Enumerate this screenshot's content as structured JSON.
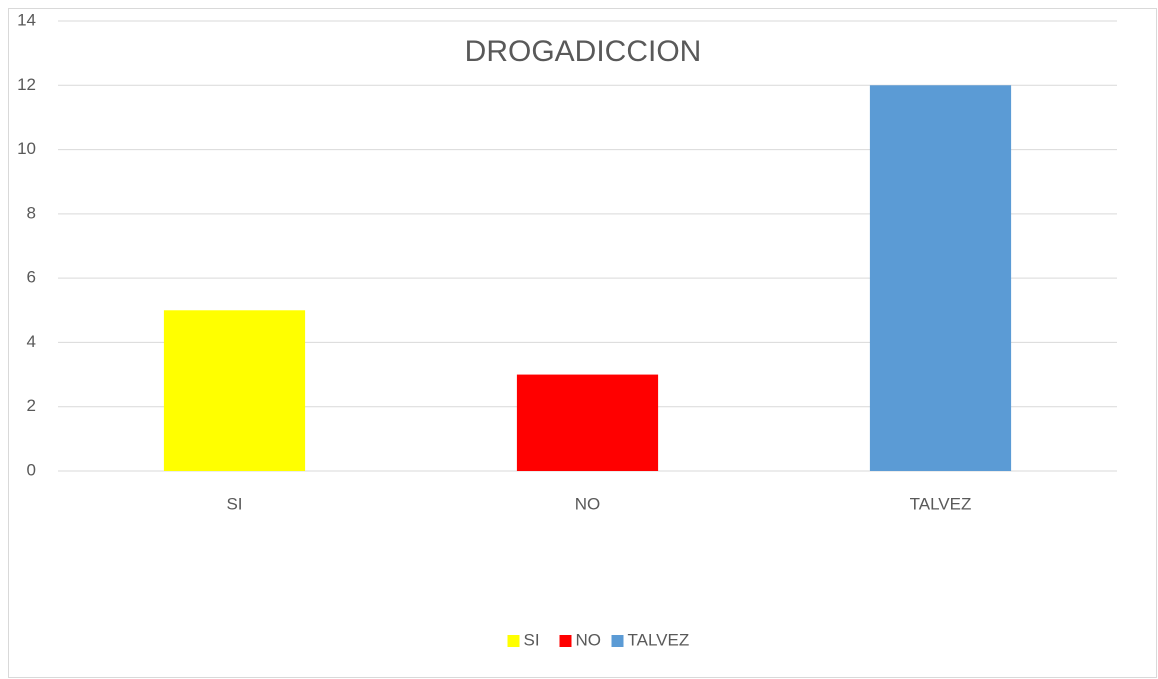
{
  "chart_data": {
    "type": "bar",
    "title": "DROGADICCION",
    "categories": [
      "SI",
      "NO",
      "TALVEZ"
    ],
    "values": [
      5,
      3,
      12
    ],
    "colors": [
      "#ffff00",
      "#ff0000",
      "#5b9bd5"
    ],
    "ylim": [
      0,
      14
    ],
    "yticks": [
      0,
      2,
      4,
      6,
      8,
      10,
      12,
      14
    ],
    "grid": true,
    "legend": "bottom"
  }
}
